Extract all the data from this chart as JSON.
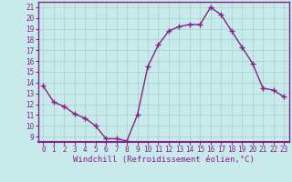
{
  "x": [
    0,
    1,
    2,
    3,
    4,
    5,
    6,
    7,
    8,
    9,
    10,
    11,
    12,
    13,
    14,
    15,
    16,
    17,
    18,
    19,
    20,
    21,
    22,
    23
  ],
  "y": [
    13.7,
    12.2,
    11.8,
    11.1,
    10.7,
    10.0,
    8.8,
    8.8,
    8.6,
    11.0,
    15.5,
    17.5,
    18.8,
    19.2,
    19.4,
    19.4,
    21.0,
    20.3,
    18.8,
    17.3,
    15.8,
    13.5,
    13.3,
    12.7
  ],
  "line_color": "#882288",
  "marker": "+",
  "markersize": 4,
  "linewidth": 1.0,
  "background_color": "#c8eaea",
  "grid_color": "#b0d8d8",
  "xlabel": "Windchill (Refroidissement éolien,°C)",
  "ylim": [
    8.5,
    21.5
  ],
  "xlim": [
    -0.5,
    23.5
  ],
  "yticks": [
    9,
    10,
    11,
    12,
    13,
    14,
    15,
    16,
    17,
    18,
    19,
    20,
    21
  ],
  "xticks": [
    0,
    1,
    2,
    3,
    4,
    5,
    6,
    7,
    8,
    9,
    10,
    11,
    12,
    13,
    14,
    15,
    16,
    17,
    18,
    19,
    20,
    21,
    22,
    23
  ],
  "tick_color": "#882288",
  "label_fontsize": 6.5,
  "tick_fontsize": 5.5,
  "spine_color": "#882288"
}
